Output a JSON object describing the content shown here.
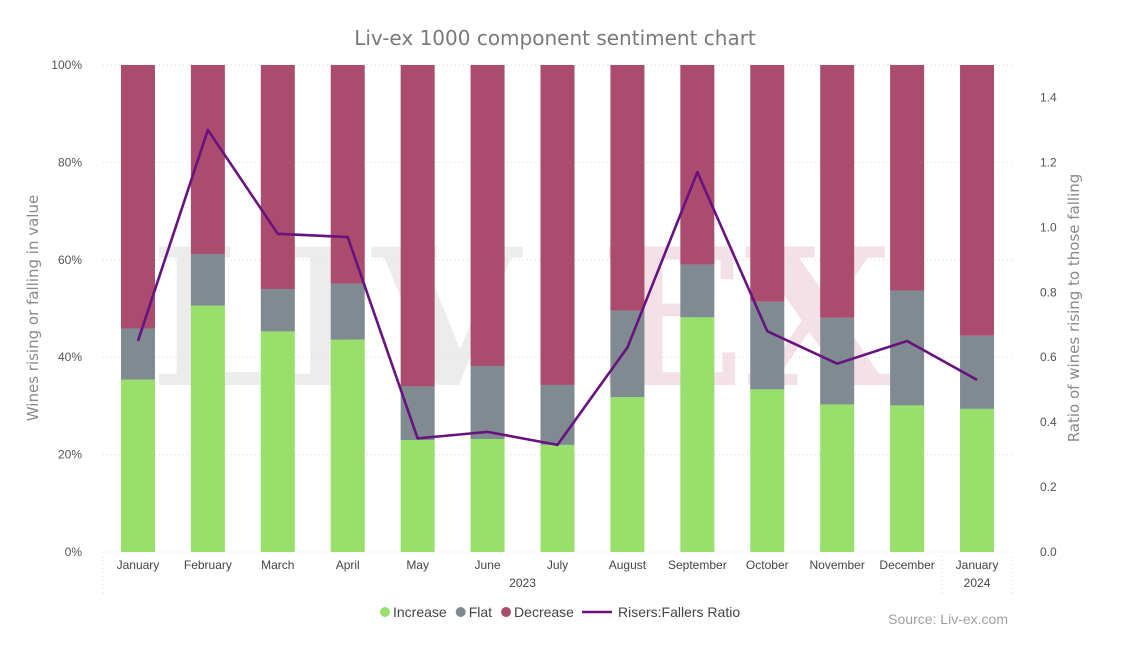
{
  "chart_data": {
    "type": "bar",
    "stacked": true,
    "percent_stacked": true,
    "title": "Liv-ex 1000 component sentiment chart",
    "ylabel": "Wines rising or falling in value",
    "y2label": "Ratio of wines rising to those falling",
    "categories": [
      "January",
      "February",
      "March",
      "April",
      "May",
      "June",
      "July",
      "August",
      "September",
      "October",
      "November",
      "December",
      "January"
    ],
    "category_groups": [
      {
        "label": "2023",
        "from": 0,
        "to": 11
      },
      {
        "label": "2024",
        "from": 12,
        "to": 12
      }
    ],
    "series": [
      {
        "name": "Increase",
        "type": "bar",
        "axis": "left",
        "color": "#98df6b",
        "values": [
          35.4,
          50.6,
          45.3,
          43.6,
          23.0,
          23.2,
          22.0,
          31.8,
          48.2,
          33.4,
          30.3,
          30.1,
          29.4
        ]
      },
      {
        "name": "Flat",
        "type": "bar",
        "axis": "left",
        "color": "#7f8a91",
        "values": [
          10.5,
          10.6,
          8.7,
          11.5,
          11.0,
          15.0,
          12.3,
          17.8,
          10.8,
          18.0,
          17.8,
          23.6,
          15.0
        ]
      },
      {
        "name": "Decrease",
        "type": "bar",
        "axis": "left",
        "color": "#ab4b6e",
        "values": [
          54.1,
          38.8,
          46.0,
          44.9,
          66.0,
          61.8,
          65.7,
          50.4,
          41.0,
          48.6,
          51.9,
          46.3,
          55.6
        ]
      },
      {
        "name": "Risers:Fallers Ratio",
        "type": "line",
        "axis": "right",
        "color": "#67127e",
        "values": [
          0.65,
          1.3,
          0.98,
          0.97,
          0.35,
          0.37,
          0.33,
          0.63,
          1.17,
          0.68,
          0.58,
          0.65,
          0.53
        ]
      }
    ],
    "yticks": [
      "0%",
      "20%",
      "40%",
      "60%",
      "80%",
      "100%"
    ],
    "ylim": [
      0,
      100
    ],
    "y2ticks": [
      "0.0",
      "0.2",
      "0.4",
      "0.6",
      "0.8",
      "1.0",
      "1.2",
      "1.4"
    ],
    "y2lim": [
      0,
      1.5
    ],
    "grid": true,
    "legend_position": "bottom-center"
  },
  "watermark": {
    "text": "LIV-EX"
  },
  "source": "Source: Liv-ex.com"
}
